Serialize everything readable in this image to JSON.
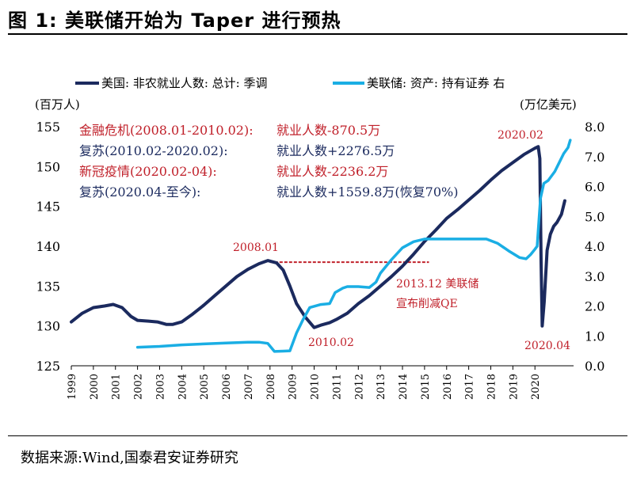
{
  "title": "图 1:  美联储开始为 Taper 进行预热",
  "source": "数据来源:Wind,国泰君安证券研究",
  "chart_data": {
    "type": "line",
    "legend_position": "top",
    "left_unit": "(百万人)",
    "right_unit": "(万亿美元)",
    "x_ticks": [
      "1999",
      "2000",
      "2001",
      "2002",
      "2003",
      "2004",
      "2005",
      "2006",
      "2007",
      "2008",
      "2009",
      "2010",
      "2011",
      "2012",
      "2013",
      "2014",
      "2015",
      "2016",
      "2017",
      "2018",
      "2019",
      "2020"
    ],
    "left_axis": {
      "ylim": [
        125,
        155
      ],
      "ticks": [
        "125",
        "130",
        "135",
        "140",
        "145",
        "150",
        "155"
      ]
    },
    "right_axis": {
      "ylim": [
        0,
        8
      ],
      "ticks": [
        "0.0",
        "1.0",
        "2.0",
        "3.0",
        "4.0",
        "5.0",
        "6.0",
        "7.0",
        "8.0"
      ]
    },
    "series": [
      {
        "name": "美国: 非农就业人数: 总计: 季调",
        "axis": "left",
        "color": "#1b2a5e",
        "points": [
          [
            1999.0,
            130.5
          ],
          [
            1999.5,
            131.6
          ],
          [
            2000.0,
            132.3
          ],
          [
            2000.5,
            132.5
          ],
          [
            2000.9,
            132.7
          ],
          [
            2001.3,
            132.3
          ],
          [
            2001.7,
            131.2
          ],
          [
            2002.0,
            130.7
          ],
          [
            2002.5,
            130.6
          ],
          [
            2002.9,
            130.5
          ],
          [
            2003.3,
            130.2
          ],
          [
            2003.6,
            130.2
          ],
          [
            2004.0,
            130.5
          ],
          [
            2004.5,
            131.5
          ],
          [
            2005.0,
            132.6
          ],
          [
            2005.5,
            133.8
          ],
          [
            2006.0,
            135.0
          ],
          [
            2006.5,
            136.2
          ],
          [
            2007.0,
            137.1
          ],
          [
            2007.5,
            137.8
          ],
          [
            2007.9,
            138.2
          ],
          [
            2008.3,
            137.9
          ],
          [
            2008.6,
            137.0
          ],
          [
            2008.9,
            135.0
          ],
          [
            2009.2,
            132.8
          ],
          [
            2009.6,
            131.1
          ],
          [
            2010.0,
            129.8
          ],
          [
            2010.3,
            130.1
          ],
          [
            2010.7,
            130.4
          ],
          [
            2011.0,
            130.8
          ],
          [
            2011.5,
            131.6
          ],
          [
            2012.0,
            132.8
          ],
          [
            2012.5,
            133.8
          ],
          [
            2013.0,
            135.0
          ],
          [
            2013.5,
            136.2
          ],
          [
            2014.0,
            137.5
          ],
          [
            2014.5,
            139.0
          ],
          [
            2015.0,
            140.6
          ],
          [
            2015.5,
            142.0
          ],
          [
            2016.0,
            143.5
          ],
          [
            2016.5,
            144.6
          ],
          [
            2017.0,
            145.8
          ],
          [
            2017.5,
            147.0
          ],
          [
            2018.0,
            148.3
          ],
          [
            2018.5,
            149.5
          ],
          [
            2019.0,
            150.5
          ],
          [
            2019.5,
            151.5
          ],
          [
            2020.0,
            152.3
          ],
          [
            2020.15,
            152.5
          ],
          [
            2020.22,
            151.0
          ],
          [
            2020.28,
            138.0
          ],
          [
            2020.33,
            130.0
          ],
          [
            2020.42,
            133.0
          ],
          [
            2020.55,
            139.5
          ],
          [
            2020.7,
            141.5
          ],
          [
            2020.85,
            142.5
          ],
          [
            2021.0,
            143.0
          ],
          [
            2021.2,
            144.0
          ],
          [
            2021.35,
            145.7
          ]
        ]
      },
      {
        "name": "美联储: 资产: 持有证券 右",
        "axis": "right",
        "color": "#1aaee4",
        "points": [
          [
            2002.0,
            0.62
          ],
          [
            2003.0,
            0.65
          ],
          [
            2004.0,
            0.7
          ],
          [
            2005.0,
            0.73
          ],
          [
            2006.0,
            0.76
          ],
          [
            2007.0,
            0.79
          ],
          [
            2007.5,
            0.79
          ],
          [
            2007.9,
            0.75
          ],
          [
            2008.2,
            0.48
          ],
          [
            2008.6,
            0.49
          ],
          [
            2008.9,
            0.5
          ],
          [
            2009.0,
            0.7
          ],
          [
            2009.2,
            1.1
          ],
          [
            2009.5,
            1.55
          ],
          [
            2009.8,
            1.95
          ],
          [
            2010.3,
            2.05
          ],
          [
            2010.7,
            2.08
          ],
          [
            2010.95,
            2.45
          ],
          [
            2011.3,
            2.6
          ],
          [
            2011.5,
            2.65
          ],
          [
            2012.0,
            2.65
          ],
          [
            2012.5,
            2.62
          ],
          [
            2012.8,
            2.8
          ],
          [
            2013.0,
            3.1
          ],
          [
            2013.5,
            3.55
          ],
          [
            2014.0,
            3.95
          ],
          [
            2014.5,
            4.15
          ],
          [
            2015.0,
            4.24
          ],
          [
            2016.0,
            4.24
          ],
          [
            2017.0,
            4.24
          ],
          [
            2017.8,
            4.24
          ],
          [
            2018.3,
            4.1
          ],
          [
            2018.8,
            3.85
          ],
          [
            2019.3,
            3.62
          ],
          [
            2019.6,
            3.58
          ],
          [
            2019.8,
            3.72
          ],
          [
            2020.0,
            3.9
          ],
          [
            2020.1,
            4.0
          ],
          [
            2020.25,
            5.6
          ],
          [
            2020.4,
            6.1
          ],
          [
            2020.6,
            6.2
          ],
          [
            2020.9,
            6.5
          ],
          [
            2021.1,
            6.8
          ],
          [
            2021.3,
            7.1
          ],
          [
            2021.5,
            7.3
          ],
          [
            2021.6,
            7.55
          ]
        ]
      }
    ],
    "annotations": {
      "lines": [
        {
          "label": "金融危机(2008.01-2010.02):",
          "value": "就业人数-870.5万",
          "color": "#c0202a"
        },
        {
          "label": "复苏(2010.02-2020.02):",
          "value": "就业人数+2276.5万",
          "color": "#1b2a5e"
        },
        {
          "label": "新冠疫情(2020.02-04):",
          "value": "就业人数-2236.2万",
          "color": "#c0202a"
        },
        {
          "label": "复苏(2020.04-至今):",
          "value": "就业人数+1559.8万(恢复70%)",
          "color": "#1b2a5e"
        }
      ],
      "points": [
        {
          "text": "2008.01",
          "color": "#c0202a"
        },
        {
          "text": "2010.02",
          "color": "#c0202a"
        },
        {
          "text": "2020.02",
          "color": "#c0202a"
        },
        {
          "text": "2020.04",
          "color": "#c0202a"
        }
      ],
      "taper_lines": [
        "2013.12 美联储",
        "宣布削减QE"
      ],
      "ref_line_value": 138,
      "ref_line_range": [
        2008.0,
        2015.2
      ]
    }
  }
}
